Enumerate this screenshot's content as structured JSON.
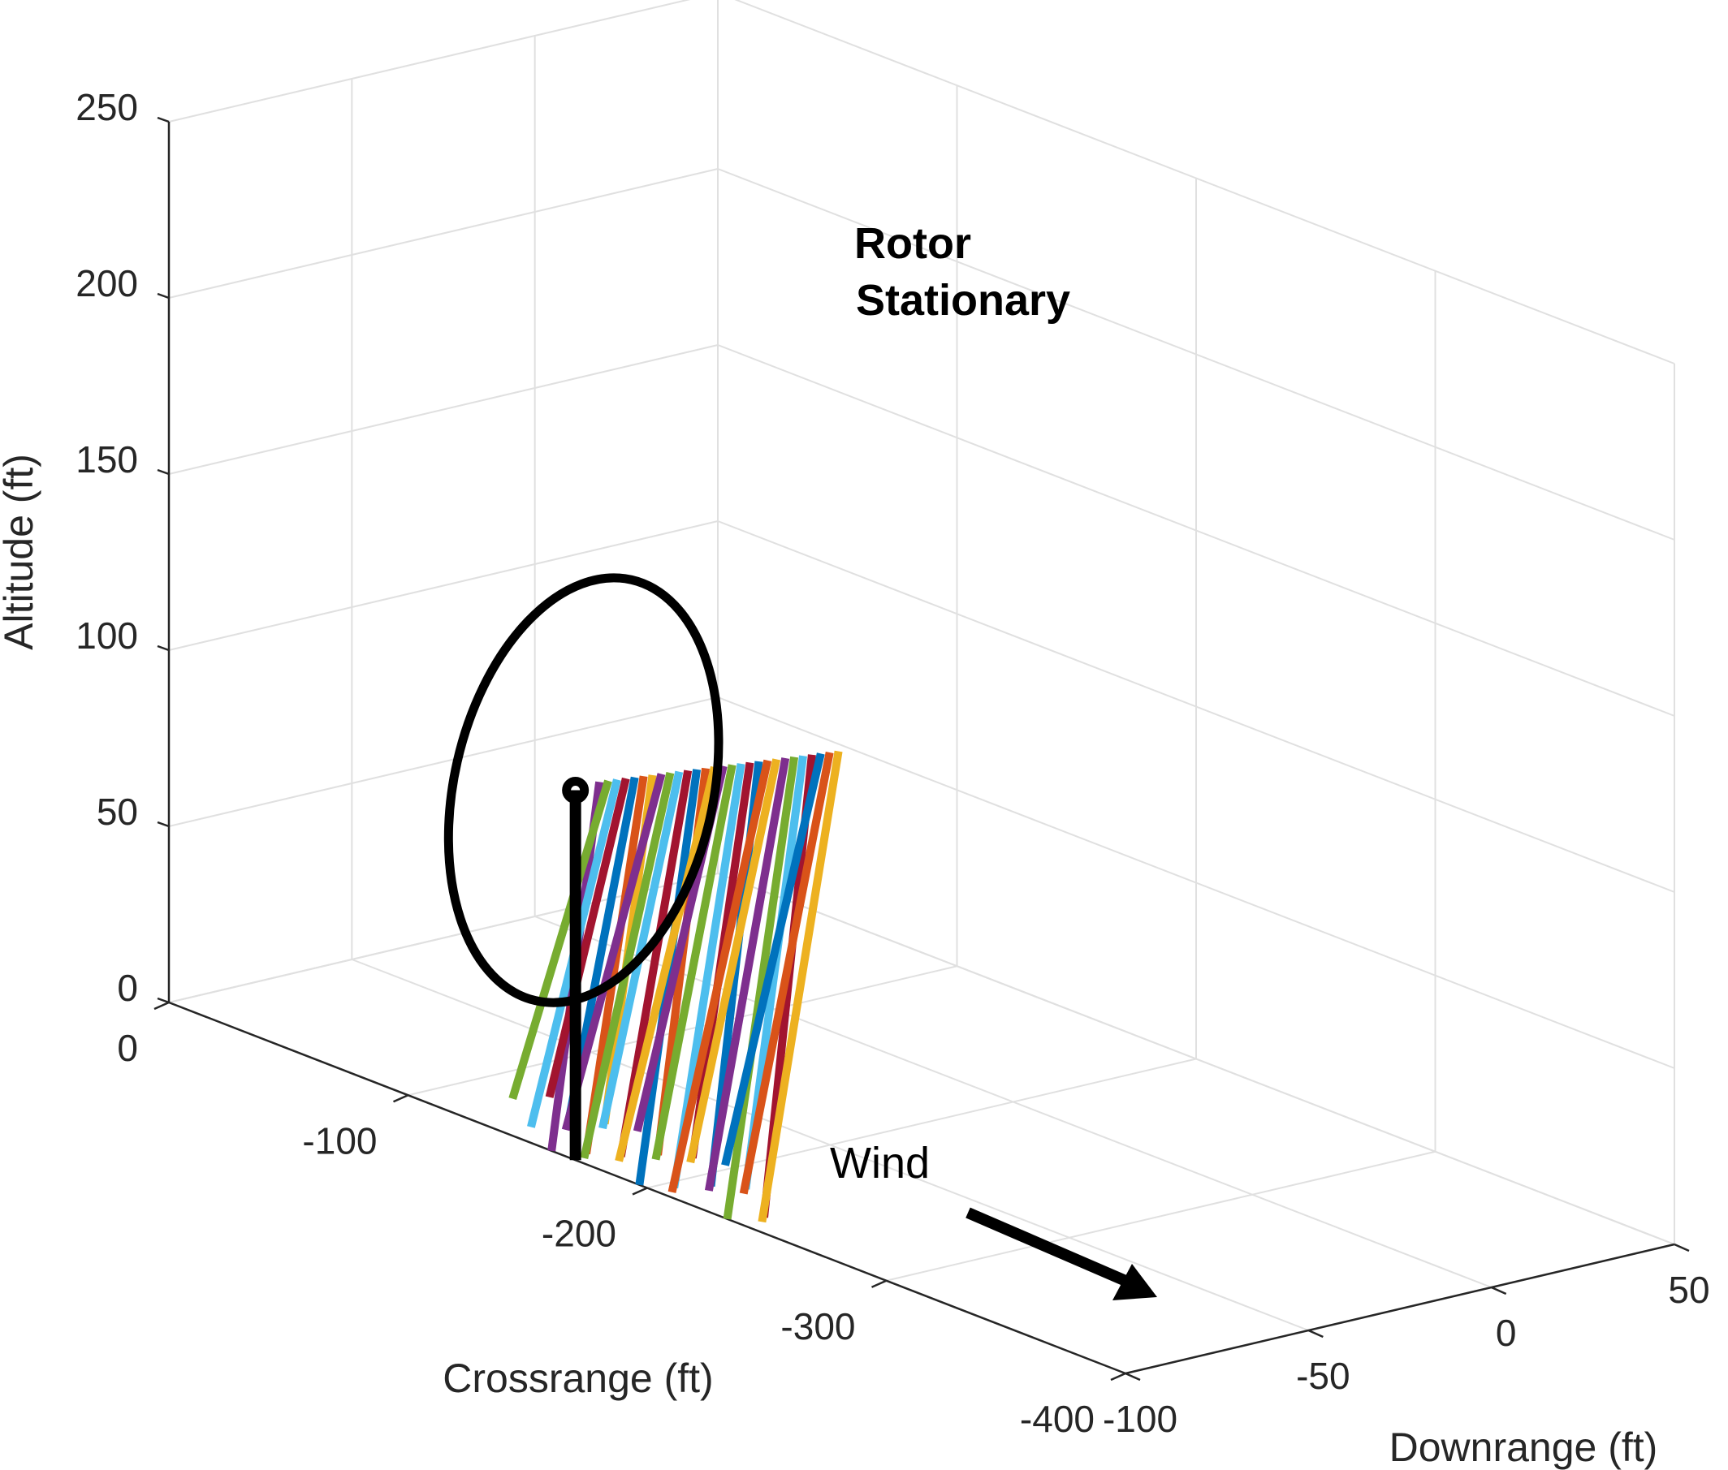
{
  "chart_data": {
    "type": "line3d",
    "projection": "3d-perspective-view",
    "grid": true,
    "axes": {
      "crossrange": {
        "label": "Crossrange (ft)",
        "ticks": [
          "0",
          "-100",
          "-200",
          "-300",
          "-400"
        ],
        "range": [
          -400,
          0
        ]
      },
      "downrange": {
        "label": "Downrange (ft)",
        "ticks": [
          "-100",
          "-50",
          "0",
          "50"
        ],
        "range": [
          -100,
          50
        ]
      },
      "altitude": {
        "label": "Altitude (ft)",
        "ticks": [
          "0",
          "50",
          "100",
          "150",
          "200",
          "250"
        ],
        "range": [
          0,
          250
        ]
      }
    },
    "annotations": {
      "rotor": [
        "Rotor",
        "Stationary"
      ],
      "wind": "Wind"
    },
    "turbine": {
      "color": "#000000",
      "tower_base_altitude": 0,
      "hub_altitude": 105,
      "rotor_top_altitude": 170,
      "rotor_bottom_altitude": 40
    },
    "trajectories": {
      "count": 28,
      "palette": [
        "#7E2F8E",
        "#77AC30",
        "#4DBEEE",
        "#A2142F",
        "#0072BD",
        "#D95319",
        "#EDB120"
      ],
      "release_altitude_range": [
        110,
        145
      ],
      "impact_altitude_range": [
        0,
        15
      ]
    }
  }
}
